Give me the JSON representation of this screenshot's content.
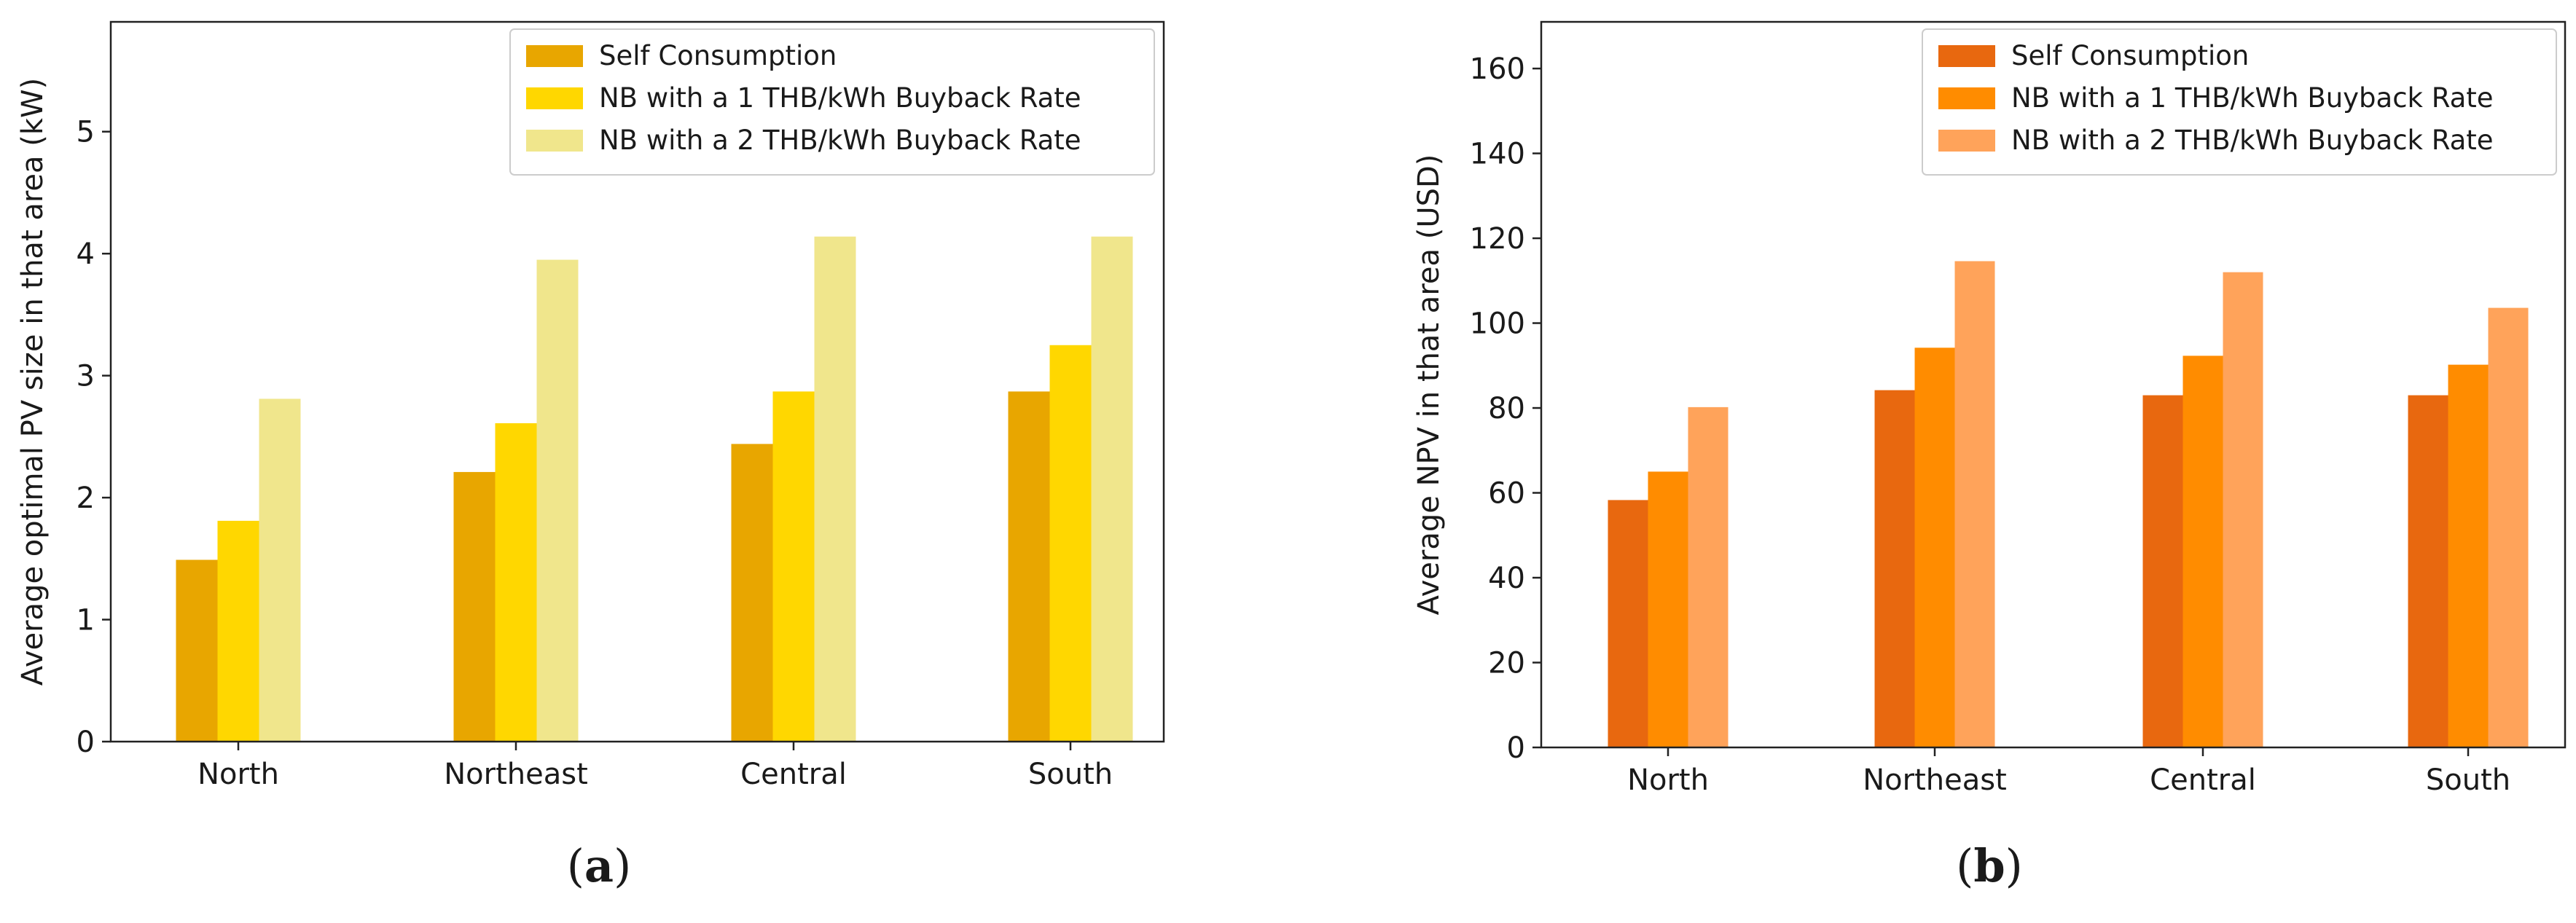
{
  "chart_data": [
    {
      "type": "bar",
      "panel_label": "(a)",
      "panel_letter": "a",
      "ylabel": "Average optimal PV size in that area (kW)",
      "xlabel": "",
      "ylim": [
        0,
        5.9
      ],
      "yticks": [
        0,
        1,
        2,
        3,
        4,
        5
      ],
      "categories": [
        "North",
        "Northeast",
        "Central",
        "South"
      ],
      "legend_position": "top-right",
      "grid": false,
      "series": [
        {
          "name": "Self Consumption",
          "color": "#E8A600",
          "values": [
            1.49,
            2.21,
            2.44,
            2.87
          ]
        },
        {
          "name": "NB with a 1 THB/kWh Buyback Rate",
          "color": "#FFD700",
          "values": [
            1.81,
            2.61,
            2.87,
            3.25
          ]
        },
        {
          "name": "NB with a 2 THB/kWh Buyback Rate",
          "color": "#F0E68C",
          "values": [
            2.81,
            3.95,
            4.14,
            4.14
          ]
        }
      ]
    },
    {
      "type": "bar",
      "panel_label": "(b)",
      "panel_letter": "b",
      "ylabel": "Average NPV in that area (USD)",
      "xlabel": "",
      "ylim": [
        0,
        171
      ],
      "yticks": [
        0,
        20,
        40,
        60,
        80,
        100,
        120,
        140,
        160
      ],
      "categories": [
        "North",
        "Northeast",
        "Central",
        "South"
      ],
      "legend_position": "top-right",
      "grid": false,
      "series": [
        {
          "name": "Self Consumption",
          "color": "#E8680F",
          "values": [
            58.3,
            84.2,
            83.0,
            83.0
          ]
        },
        {
          "name": "NB with a 1 THB/kWh Buyback Rate",
          "color": "#FF8C00",
          "values": [
            65.0,
            94.2,
            92.3,
            90.2
          ]
        },
        {
          "name": "NB with a 2 THB/kWh Buyback Rate",
          "color": "#FFA35A",
          "values": [
            80.2,
            114.6,
            112.0,
            103.6
          ]
        }
      ]
    }
  ]
}
